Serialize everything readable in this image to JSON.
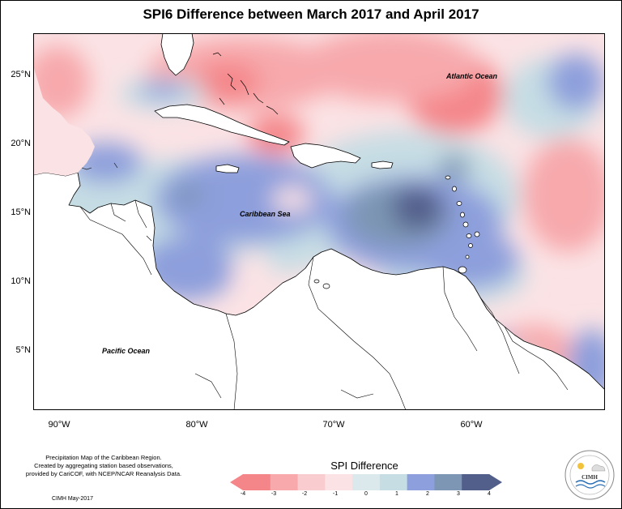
{
  "title": "SPI6 Difference between March 2017 and April 2017",
  "map": {
    "lat_labels": [
      "25°N",
      "20°N",
      "15°N",
      "10°N",
      "5°N"
    ],
    "lon_labels": [
      "90°W",
      "80°W",
      "70°W",
      "60°W"
    ],
    "places": {
      "atlantic": "Atlantic Ocean",
      "caribbean": "Caribbean Sea",
      "pacific": "Pacific Ocean"
    }
  },
  "credits": {
    "lines": [
      "Precipitation Map of the Caribbean Region.",
      "Created by aggregating station based observations,",
      "provided by CariCOF, with NCEP/NCAR Reanalysis Data."
    ],
    "date": "CIMH May-2017"
  },
  "legend": {
    "title": "SPI Difference",
    "ticks": [
      "-4",
      "-3",
      "-2",
      "-1",
      "0",
      "1",
      "2",
      "3",
      "4"
    ],
    "colors": [
      "#f4868a",
      "#f7a9ac",
      "#f9cdd0",
      "#fbe3e5",
      "#dbe9ec",
      "#c6dde4",
      "#8d9fdc",
      "#7d96b4",
      "#525f8b"
    ]
  },
  "logo": {
    "text": "CIMH"
  },
  "colors": {
    "neg_strong": "#f4868a",
    "neg_mid": "#f7a9ac",
    "neg_light": "#fbe3e5",
    "neutral": "#fdf1f2",
    "pos_light": "#c6dde4",
    "pos_mid": "#8d9fdc",
    "pos_strong": "#7d96b4",
    "pos_max": "#525f8b"
  }
}
